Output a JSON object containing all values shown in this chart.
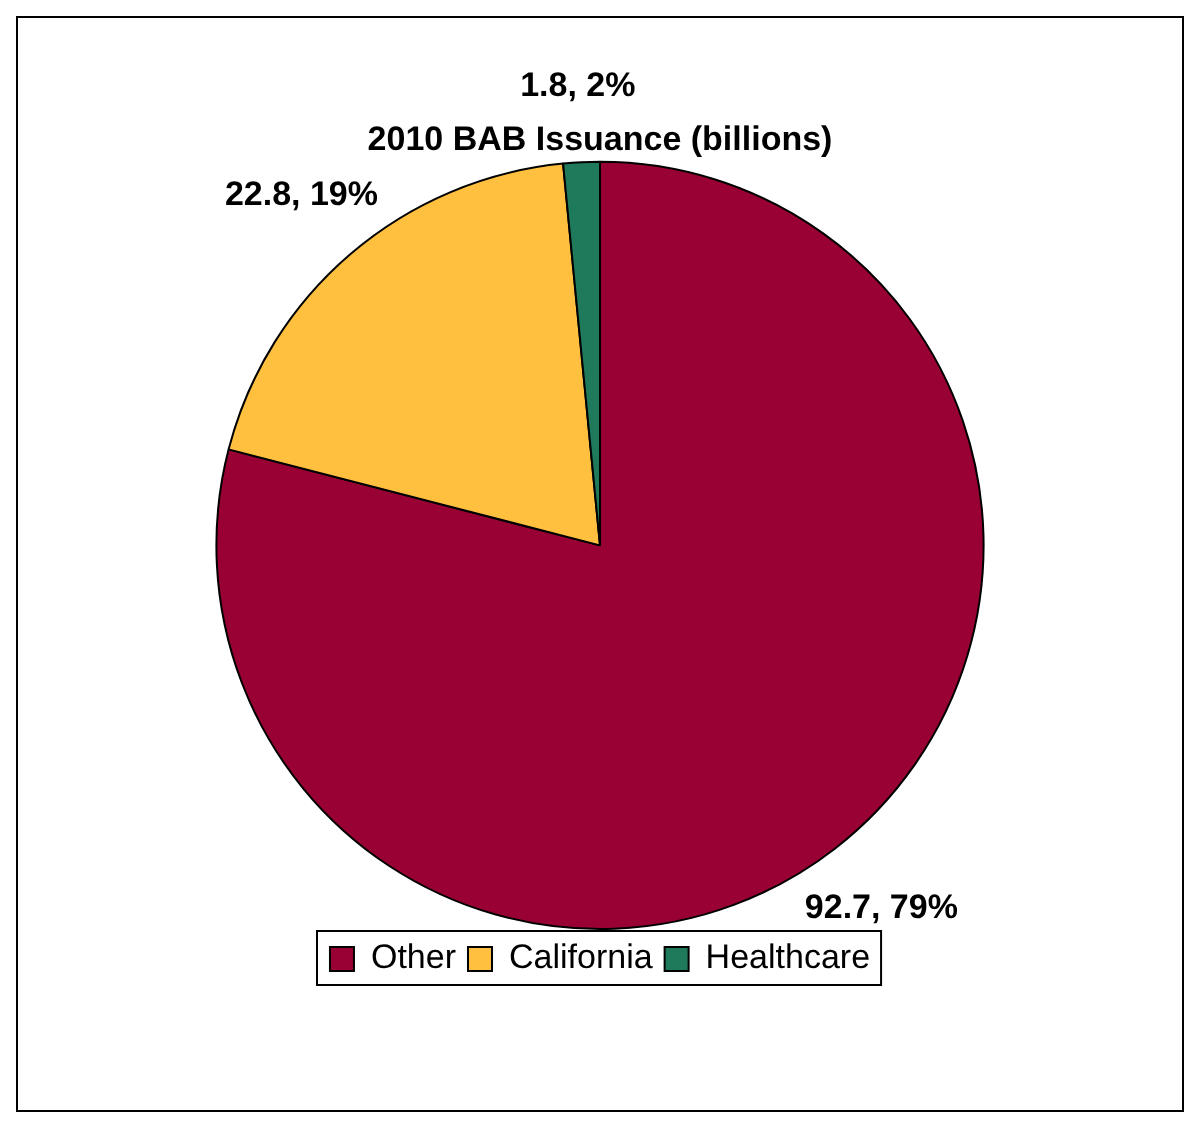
{
  "chart_data": {
    "type": "pie",
    "title": "2010 BAB Issuance (billions)",
    "categories": [
      "Other",
      "California",
      "Healthcare"
    ],
    "values": [
      92.7,
      22.8,
      1.8
    ],
    "colors": [
      "#990033",
      "#ffc040",
      "#1f7a5c"
    ],
    "value_labels": [
      "92.7, 79%",
      "22.8, 19%",
      "1.8, 2%"
    ],
    "legend": "bottom"
  }
}
